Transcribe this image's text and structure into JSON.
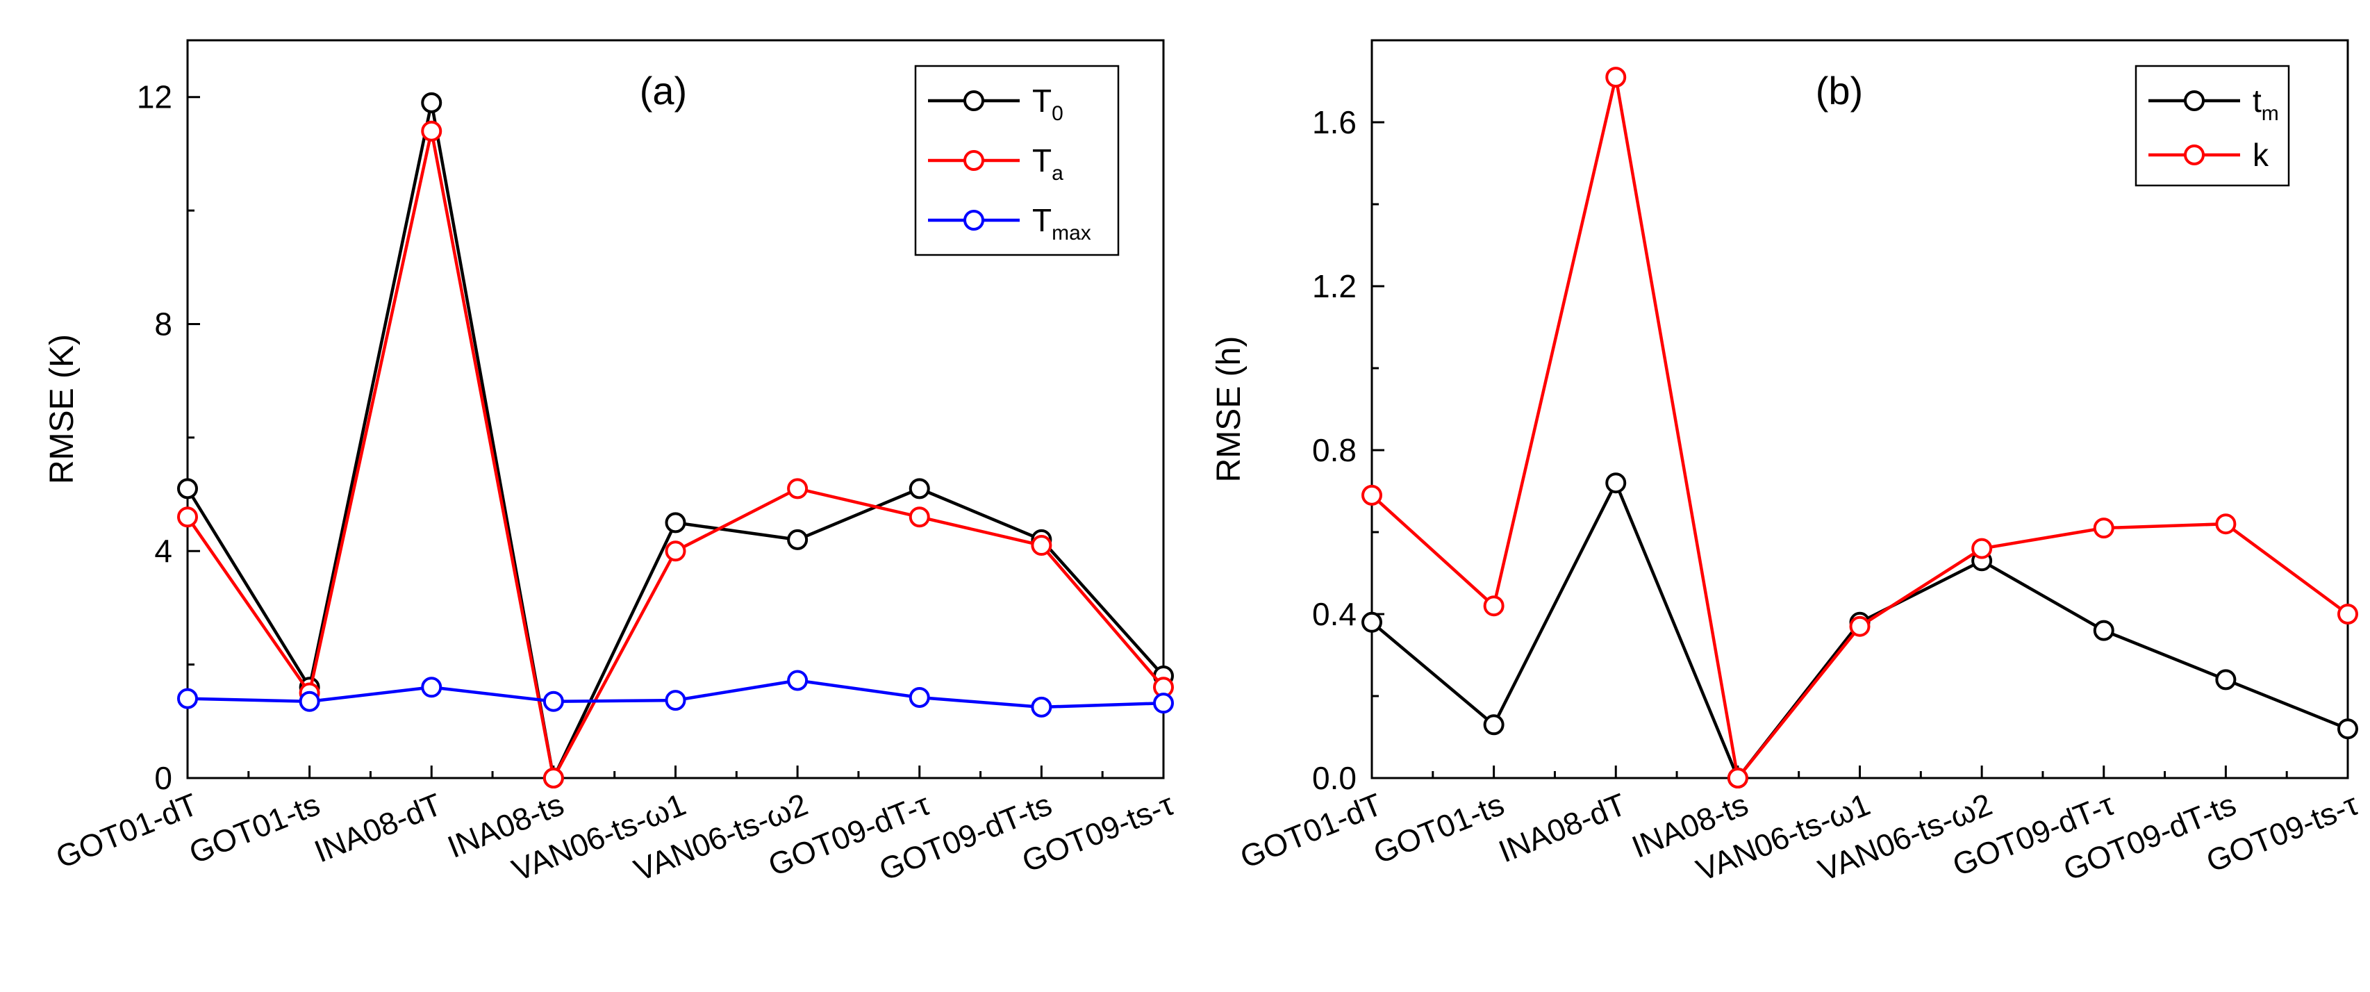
{
  "chart_data": [
    {
      "type": "line",
      "panel_label": "(a)",
      "ylabel": "RMSE (K)",
      "ylim": [
        0,
        13
      ],
      "yticks": [
        "0",
        "4",
        "8",
        "12"
      ],
      "categories": [
        "GOT01-dT",
        "GOT01-ts",
        "INA08-dT",
        "INA08-ts",
        "VAN06-ts-ω1",
        "VAN06-ts-ω2",
        "GOT09-dT-τ",
        "GOT09-dT-ts",
        "GOT09-ts-τ"
      ],
      "legend_position": "top-right",
      "series": [
        {
          "name": "T",
          "sub": "0",
          "color": "#000000",
          "values": [
            5.1,
            1.6,
            11.9,
            0.0,
            4.5,
            4.2,
            5.1,
            4.2,
            1.8
          ]
        },
        {
          "name": "T",
          "sub": "a",
          "color": "#ff0000",
          "values": [
            4.6,
            1.5,
            11.4,
            0.0,
            4.0,
            5.1,
            4.6,
            4.1,
            1.6
          ]
        },
        {
          "name": "T",
          "sub": "max",
          "color": "#0000ff",
          "values": [
            1.4,
            1.35,
            1.6,
            1.35,
            1.37,
            1.72,
            1.42,
            1.25,
            1.32
          ]
        }
      ]
    },
    {
      "type": "line",
      "panel_label": "(b)",
      "ylabel": "RMSE (h)",
      "ylim": [
        0,
        1.8
      ],
      "yticks": [
        "0.0",
        "0.4",
        "0.8",
        "1.2",
        "1.6"
      ],
      "categories": [
        "GOT01-dT",
        "GOT01-ts",
        "INA08-dT",
        "INA08-ts",
        "VAN06-ts-ω1",
        "VAN06-ts-ω2",
        "GOT09-dT-τ",
        "GOT09-dT-ts",
        "GOT09-ts-τ"
      ],
      "legend_position": "top-right",
      "series": [
        {
          "name": "t",
          "sub": "m",
          "color": "#000000",
          "values": [
            0.38,
            0.13,
            0.72,
            0.0,
            0.38,
            0.53,
            0.36,
            0.24,
            0.12
          ]
        },
        {
          "name": "k",
          "sub": "",
          "color": "#ff0000",
          "values": [
            0.69,
            0.42,
            1.71,
            0.0,
            0.37,
            0.56,
            0.61,
            0.62,
            0.4
          ]
        }
      ]
    }
  ]
}
